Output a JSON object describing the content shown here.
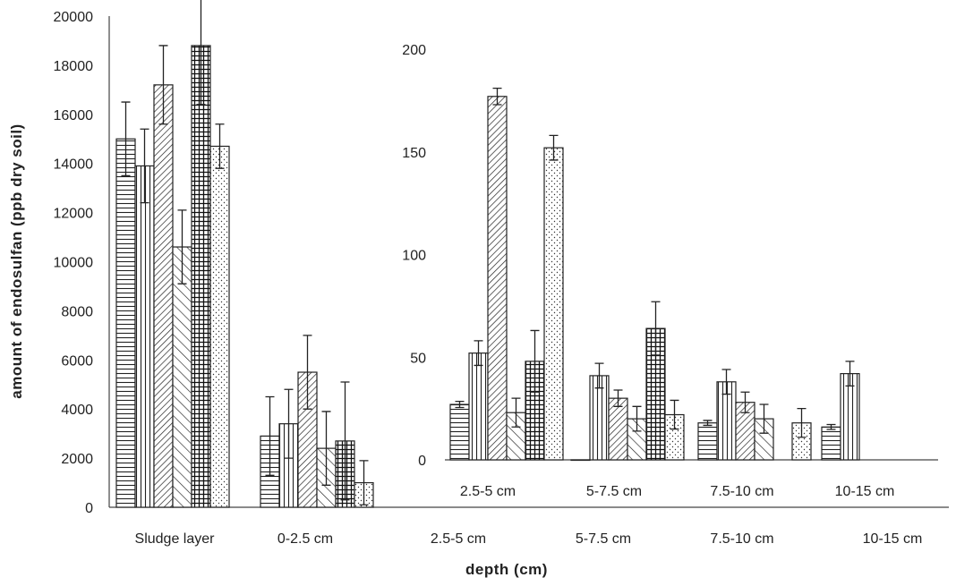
{
  "chart_data": [
    {
      "type": "bar",
      "ylabel": "amount of endosulfan (ppb dry soil)",
      "xlabel": "depth (cm)",
      "ylim": [
        0,
        20000
      ],
      "yticks": [
        0,
        2000,
        4000,
        6000,
        8000,
        10000,
        12000,
        14000,
        16000,
        18000,
        20000
      ],
      "categories": [
        "Sludge layer",
        "0-2.5 cm",
        "2.5-5 cm",
        "5-7.5 cm",
        "7.5-10 cm",
        "10-15 cm"
      ],
      "series": [
        {
          "pattern": "hlines",
          "values": [
            15000,
            2900,
            null,
            null,
            null,
            null
          ],
          "errors": [
            1500,
            1600,
            null,
            null,
            null,
            null
          ]
        },
        {
          "pattern": "vlines",
          "values": [
            13900,
            3400,
            null,
            null,
            null,
            null
          ],
          "errors": [
            1500,
            1400,
            null,
            null,
            null,
            null
          ]
        },
        {
          "pattern": "diag-dense",
          "values": [
            17200,
            5500,
            null,
            null,
            null,
            null
          ],
          "errors": [
            1600,
            1500,
            null,
            null,
            null,
            null
          ]
        },
        {
          "pattern": "diag-sparse",
          "values": [
            10600,
            2400,
            null,
            null,
            null,
            null
          ],
          "errors": [
            1500,
            1500,
            null,
            null,
            null,
            null
          ]
        },
        {
          "pattern": "grid",
          "values": [
            18800,
            2700,
            null,
            null,
            null,
            null
          ],
          "errors": [
            2400,
            2400,
            null,
            null,
            null,
            null
          ]
        },
        {
          "pattern": "dots",
          "values": [
            14700,
            1000,
            null,
            null,
            null,
            null
          ],
          "errors": [
            900,
            900,
            null,
            null,
            null,
            null
          ]
        }
      ]
    },
    {
      "type": "bar",
      "inset": true,
      "ylim": [
        0,
        200
      ],
      "yticks": [
        0,
        50,
        100,
        150,
        200
      ],
      "categories": [
        "2.5-5 cm",
        "5-7.5 cm",
        "7.5-10 cm",
        "10-15 cm"
      ],
      "series": [
        {
          "pattern": "hlines",
          "values": [
            27,
            0,
            18,
            16
          ],
          "errors": [
            1.5,
            0,
            1.2,
            1.2
          ]
        },
        {
          "pattern": "vlines",
          "values": [
            52,
            41,
            38,
            42
          ],
          "errors": [
            6,
            6,
            6,
            6
          ]
        },
        {
          "pattern": "diag-dense",
          "values": [
            177,
            30,
            28,
            null
          ],
          "errors": [
            4,
            4,
            5,
            null
          ]
        },
        {
          "pattern": "diag-sparse",
          "values": [
            23,
            20,
            20,
            null
          ],
          "errors": [
            7,
            6,
            7,
            null
          ]
        },
        {
          "pattern": "grid",
          "values": [
            48,
            64,
            null,
            null
          ],
          "errors": [
            15,
            13,
            null,
            null
          ]
        },
        {
          "pattern": "dots",
          "values": [
            152,
            22,
            18,
            null
          ],
          "errors": [
            6,
            7,
            7,
            null
          ]
        }
      ]
    }
  ]
}
